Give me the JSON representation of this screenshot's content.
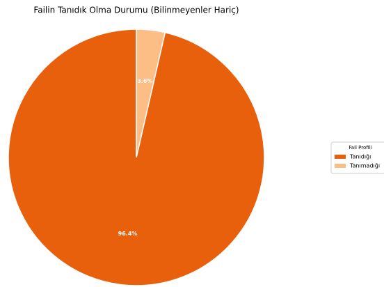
{
  "chart_data": {
    "type": "pie",
    "title": "Failin Tanıdık Olma Durumu (Bilinmeyenler Hariç)",
    "categories": [
      "Tanıdığı",
      "Tanımadığı"
    ],
    "values": [
      96.4,
      3.6
    ],
    "value_labels": [
      "96.4%",
      "3.6%"
    ],
    "colors": [
      "#e8600c",
      "#fdbe85"
    ],
    "legend_title": "Fail Profili",
    "legend": "right"
  }
}
